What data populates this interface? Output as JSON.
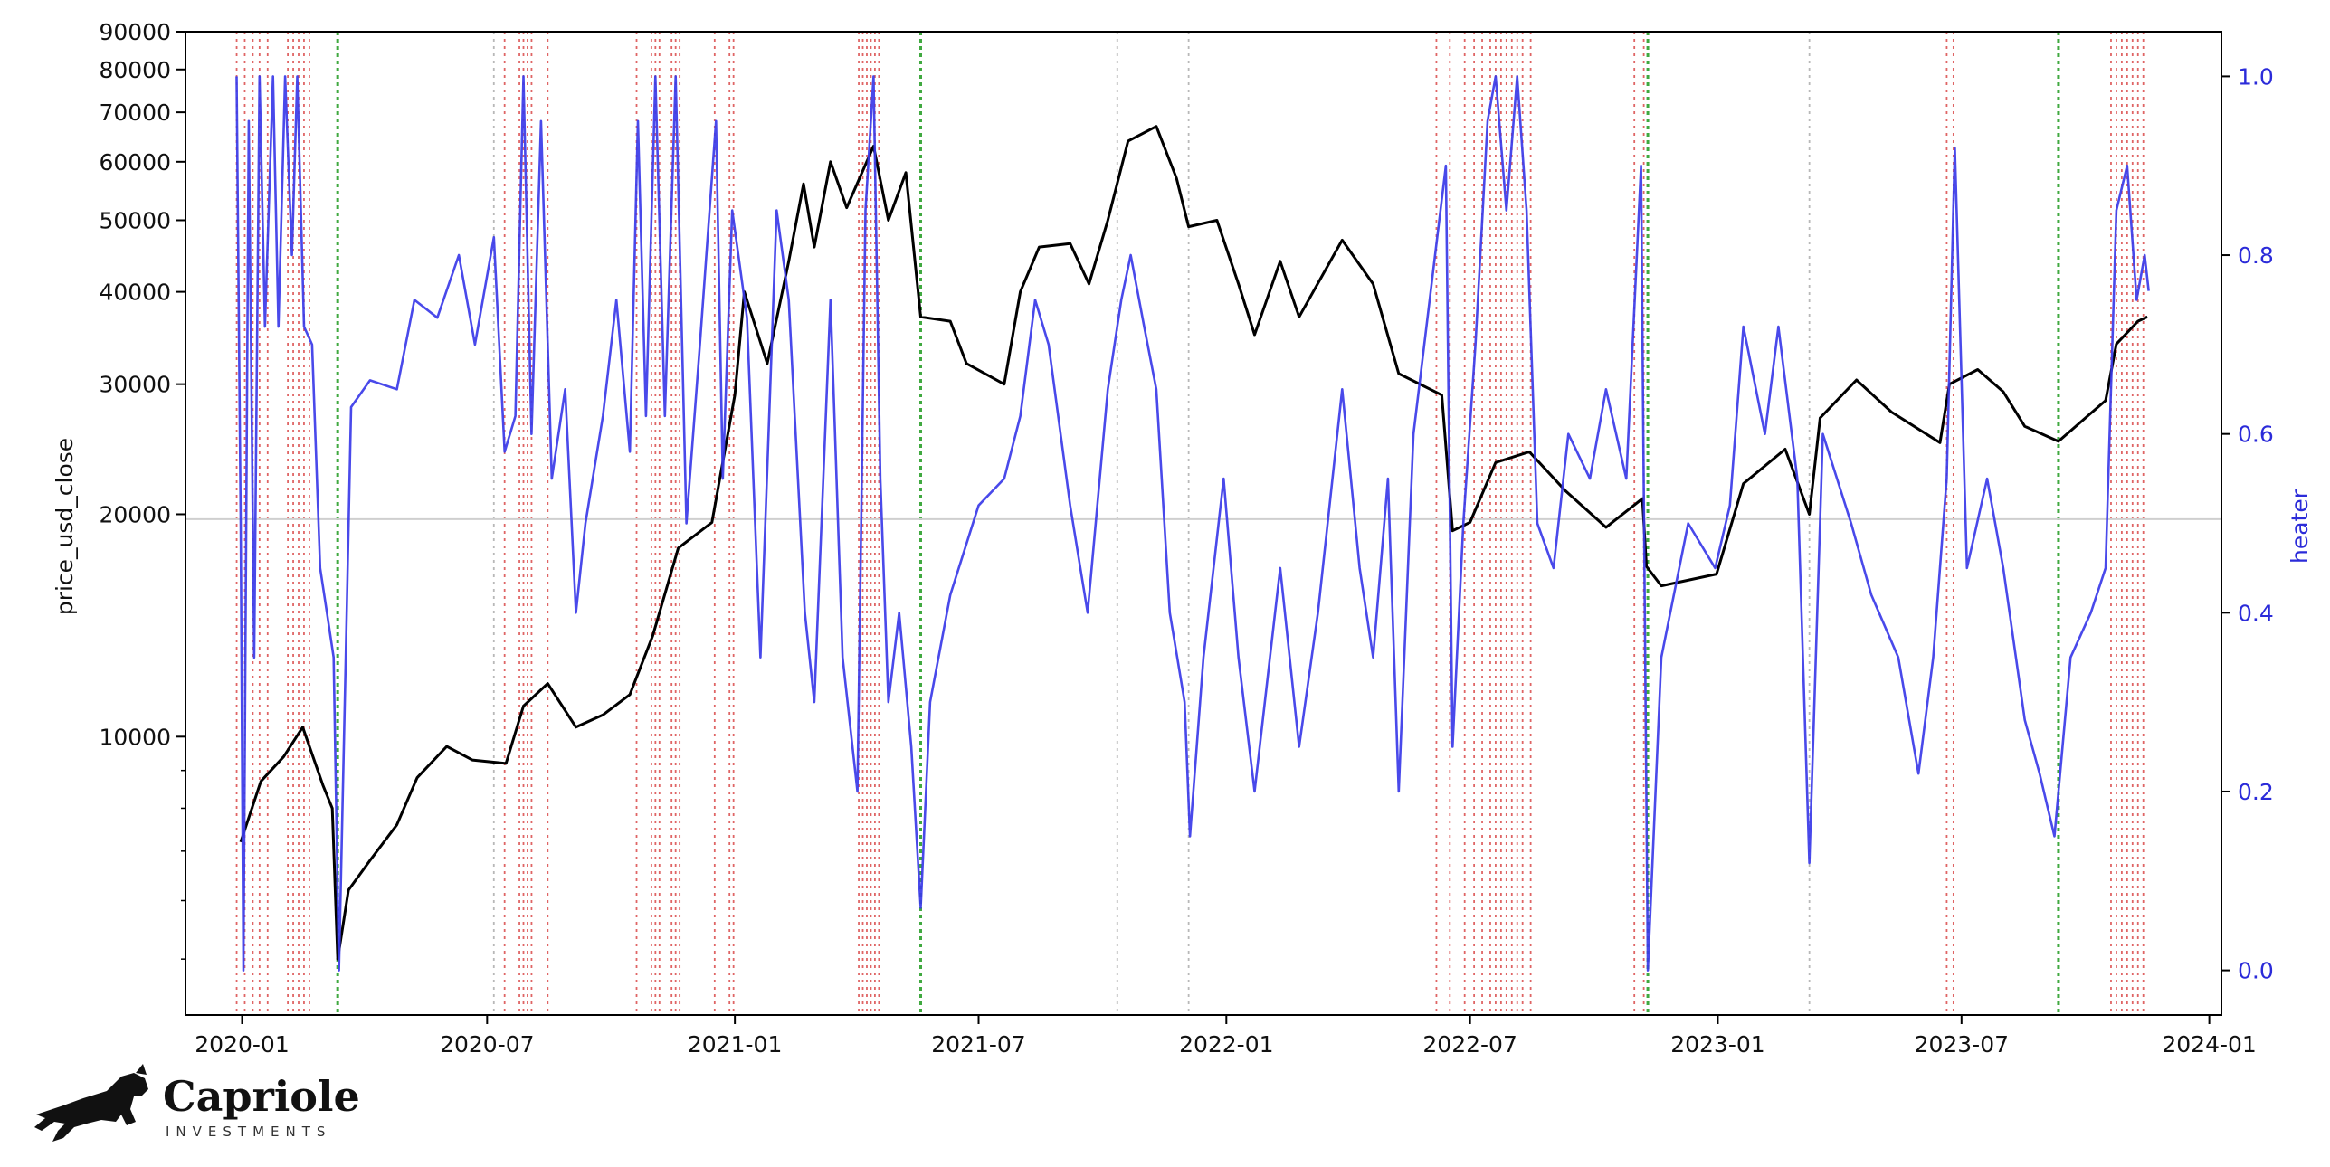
{
  "chart_data": {
    "type": "line",
    "xlabel": "",
    "ylabel": "price_usd_close",
    "y2label": "heater",
    "yscale": "log",
    "ylim": [
      4200,
      90000
    ],
    "y2lim": [
      -0.05,
      1.05
    ],
    "xlim": [
      "2019-11-20",
      "2024-01-10"
    ],
    "x_ticks": [
      "2020-01",
      "2020-07",
      "2021-01",
      "2021-07",
      "2022-01",
      "2022-07",
      "2023-01",
      "2023-07",
      "2024-01"
    ],
    "y_ticks": [
      10000,
      20000,
      30000,
      40000,
      50000,
      60000,
      70000,
      80000,
      90000
    ],
    "y_tick_labels": [
      "10000",
      "20000",
      "30000",
      "40000",
      "50000",
      "60000",
      "70000",
      "80000",
      "90000"
    ],
    "y2_ticks": [
      0.0,
      0.2,
      0.4,
      0.6,
      0.8,
      1.0
    ],
    "y2_tick_labels": [
      "0.0",
      "0.2",
      "0.4",
      "0.6",
      "0.8",
      "1.0"
    ],
    "reference_line": {
      "axis": "y",
      "value": 19700
    },
    "series": [
      {
        "axis": "left",
        "color": "#000000",
        "points": [
          [
            "2019-12-31",
            7200
          ],
          [
            "2020-01-15",
            8700
          ],
          [
            "2020-02-01",
            9400
          ],
          [
            "2020-02-15",
            10300
          ],
          [
            "2020-03-01",
            8600
          ],
          [
            "2020-03-08",
            8000
          ],
          [
            "2020-03-12",
            5000
          ],
          [
            "2020-03-20",
            6200
          ],
          [
            "2020-04-05",
            6800
          ],
          [
            "2020-04-25",
            7600
          ],
          [
            "2020-05-10",
            8800
          ],
          [
            "2020-06-01",
            9700
          ],
          [
            "2020-06-20",
            9300
          ],
          [
            "2020-07-15",
            9200
          ],
          [
            "2020-07-28",
            11000
          ],
          [
            "2020-08-15",
            11800
          ],
          [
            "2020-09-05",
            10300
          ],
          [
            "2020-09-25",
            10700
          ],
          [
            "2020-10-15",
            11400
          ],
          [
            "2020-11-01",
            13700
          ],
          [
            "2020-11-20",
            18000
          ],
          [
            "2020-12-15",
            19500
          ],
          [
            "2021-01-01",
            29000
          ],
          [
            "2021-01-08",
            40000
          ],
          [
            "2021-01-25",
            32000
          ],
          [
            "2021-02-10",
            44000
          ],
          [
            "2021-02-21",
            56000
          ],
          [
            "2021-03-01",
            46000
          ],
          [
            "2021-03-13",
            60000
          ],
          [
            "2021-03-25",
            52000
          ],
          [
            "2021-04-14",
            63000
          ],
          [
            "2021-04-25",
            50000
          ],
          [
            "2021-05-08",
            58000
          ],
          [
            "2021-05-19",
            37000
          ],
          [
            "2021-06-10",
            36500
          ],
          [
            "2021-06-22",
            32000
          ],
          [
            "2021-07-20",
            30000
          ],
          [
            "2021-08-01",
            40000
          ],
          [
            "2021-08-15",
            46000
          ],
          [
            "2021-09-07",
            46500
          ],
          [
            "2021-09-21",
            41000
          ],
          [
            "2021-10-05",
            50000
          ],
          [
            "2021-10-20",
            64000
          ],
          [
            "2021-11-10",
            67000
          ],
          [
            "2021-11-25",
            57000
          ],
          [
            "2021-12-04",
            49000
          ],
          [
            "2021-12-25",
            50000
          ],
          [
            "2022-01-10",
            41000
          ],
          [
            "2022-01-22",
            35000
          ],
          [
            "2022-02-10",
            44000
          ],
          [
            "2022-02-24",
            37000
          ],
          [
            "2022-03-28",
            47000
          ],
          [
            "2022-04-20",
            41000
          ],
          [
            "2022-05-09",
            31000
          ],
          [
            "2022-06-10",
            29000
          ],
          [
            "2022-06-18",
            19000
          ],
          [
            "2022-07-01",
            19500
          ],
          [
            "2022-07-20",
            23500
          ],
          [
            "2022-08-14",
            24300
          ],
          [
            "2022-09-10",
            21500
          ],
          [
            "2022-10-10",
            19200
          ],
          [
            "2022-11-06",
            21000
          ],
          [
            "2022-11-09",
            17000
          ],
          [
            "2022-11-20",
            16000
          ],
          [
            "2022-12-31",
            16600
          ],
          [
            "2023-01-20",
            22000
          ],
          [
            "2023-02-20",
            24500
          ],
          [
            "2023-03-10",
            20000
          ],
          [
            "2023-03-18",
            27000
          ],
          [
            "2023-04-14",
            30400
          ],
          [
            "2023-05-10",
            27500
          ],
          [
            "2023-06-15",
            25000
          ],
          [
            "2023-06-22",
            30000
          ],
          [
            "2023-07-13",
            31400
          ],
          [
            "2023-08-01",
            29300
          ],
          [
            "2023-08-17",
            26300
          ],
          [
            "2023-09-11",
            25100
          ],
          [
            "2023-10-01",
            27000
          ],
          [
            "2023-10-16",
            28500
          ],
          [
            "2023-10-24",
            34000
          ],
          [
            "2023-11-09",
            36500
          ],
          [
            "2023-11-16",
            37000
          ]
        ]
      },
      {
        "axis": "right",
        "color": "#3a3ae8",
        "points": [
          [
            "2019-12-28",
            1.0
          ],
          [
            "2019-12-31",
            0.5
          ],
          [
            "2020-01-02",
            0.0
          ],
          [
            "2020-01-06",
            0.95
          ],
          [
            "2020-01-10",
            0.35
          ],
          [
            "2020-01-14",
            1.0
          ],
          [
            "2020-01-18",
            0.72
          ],
          [
            "2020-01-24",
            1.0
          ],
          [
            "2020-01-28",
            0.72
          ],
          [
            "2020-02-02",
            1.0
          ],
          [
            "2020-02-07",
            0.8
          ],
          [
            "2020-02-11",
            1.0
          ],
          [
            "2020-02-16",
            0.72
          ],
          [
            "2020-02-22",
            0.7
          ],
          [
            "2020-02-28",
            0.45
          ],
          [
            "2020-03-04",
            0.4
          ],
          [
            "2020-03-09",
            0.35
          ],
          [
            "2020-03-13",
            0.0
          ],
          [
            "2020-03-18",
            0.35
          ],
          [
            "2020-03-22",
            0.63
          ],
          [
            "2020-04-05",
            0.66
          ],
          [
            "2020-04-25",
            0.65
          ],
          [
            "2020-05-08",
            0.75
          ],
          [
            "2020-05-25",
            0.73
          ],
          [
            "2020-06-10",
            0.8
          ],
          [
            "2020-06-22",
            0.7
          ],
          [
            "2020-07-06",
            0.82
          ],
          [
            "2020-07-14",
            0.58
          ],
          [
            "2020-07-22",
            0.62
          ],
          [
            "2020-07-28",
            1.0
          ],
          [
            "2020-08-03",
            0.6
          ],
          [
            "2020-08-10",
            0.95
          ],
          [
            "2020-08-18",
            0.55
          ],
          [
            "2020-08-28",
            0.65
          ],
          [
            "2020-09-05",
            0.4
          ],
          [
            "2020-09-12",
            0.5
          ],
          [
            "2020-09-25",
            0.62
          ],
          [
            "2020-10-05",
            0.75
          ],
          [
            "2020-10-15",
            0.58
          ],
          [
            "2020-10-21",
            0.95
          ],
          [
            "2020-10-27",
            0.62
          ],
          [
            "2020-11-03",
            1.0
          ],
          [
            "2020-11-10",
            0.62
          ],
          [
            "2020-11-18",
            1.0
          ],
          [
            "2020-11-26",
            0.5
          ],
          [
            "2020-12-06",
            0.7
          ],
          [
            "2020-12-18",
            0.95
          ],
          [
            "2020-12-23",
            0.55
          ],
          [
            "2020-12-30",
            0.85
          ],
          [
            "2021-01-10",
            0.73
          ],
          [
            "2021-01-20",
            0.35
          ],
          [
            "2021-02-01",
            0.85
          ],
          [
            "2021-02-10",
            0.75
          ],
          [
            "2021-02-22",
            0.4
          ],
          [
            "2021-03-01",
            0.3
          ],
          [
            "2021-03-13",
            0.75
          ],
          [
            "2021-03-22",
            0.35
          ],
          [
            "2021-04-02",
            0.2
          ],
          [
            "2021-04-08",
            0.85
          ],
          [
            "2021-04-14",
            1.0
          ],
          [
            "2021-04-19",
            0.55
          ],
          [
            "2021-04-25",
            0.3
          ],
          [
            "2021-05-03",
            0.4
          ],
          [
            "2021-05-12",
            0.25
          ],
          [
            "2021-05-19",
            0.07
          ],
          [
            "2021-05-26",
            0.3
          ],
          [
            "2021-06-10",
            0.42
          ],
          [
            "2021-07-01",
            0.52
          ],
          [
            "2021-07-20",
            0.55
          ],
          [
            "2021-08-01",
            0.62
          ],
          [
            "2021-08-12",
            0.75
          ],
          [
            "2021-08-22",
            0.7
          ],
          [
            "2021-09-07",
            0.52
          ],
          [
            "2021-09-20",
            0.4
          ],
          [
            "2021-10-05",
            0.65
          ],
          [
            "2021-10-15",
            0.75
          ],
          [
            "2021-10-22",
            0.8
          ],
          [
            "2021-11-01",
            0.72
          ],
          [
            "2021-11-10",
            0.65
          ],
          [
            "2021-11-20",
            0.4
          ],
          [
            "2021-12-01",
            0.3
          ],
          [
            "2021-12-05",
            0.15
          ],
          [
            "2021-12-15",
            0.35
          ],
          [
            "2021-12-30",
            0.55
          ],
          [
            "2022-01-10",
            0.35
          ],
          [
            "2022-01-22",
            0.2
          ],
          [
            "2022-02-10",
            0.45
          ],
          [
            "2022-02-24",
            0.25
          ],
          [
            "2022-03-10",
            0.4
          ],
          [
            "2022-03-28",
            0.65
          ],
          [
            "2022-04-10",
            0.45
          ],
          [
            "2022-04-20",
            0.35
          ],
          [
            "2022-05-01",
            0.55
          ],
          [
            "2022-05-09",
            0.2
          ],
          [
            "2022-05-20",
            0.6
          ],
          [
            "2022-06-01",
            0.75
          ],
          [
            "2022-06-13",
            0.9
          ],
          [
            "2022-06-18",
            0.25
          ],
          [
            "2022-06-26",
            0.5
          ],
          [
            "2022-07-05",
            0.7
          ],
          [
            "2022-07-14",
            0.95
          ],
          [
            "2022-07-20",
            1.0
          ],
          [
            "2022-07-28",
            0.85
          ],
          [
            "2022-08-05",
            1.0
          ],
          [
            "2022-08-12",
            0.85
          ],
          [
            "2022-08-20",
            0.5
          ],
          [
            "2022-09-01",
            0.45
          ],
          [
            "2022-09-12",
            0.6
          ],
          [
            "2022-09-28",
            0.55
          ],
          [
            "2022-10-10",
            0.65
          ],
          [
            "2022-10-25",
            0.55
          ],
          [
            "2022-11-05",
            0.9
          ],
          [
            "2022-11-10",
            0.0
          ],
          [
            "2022-11-20",
            0.35
          ],
          [
            "2022-12-10",
            0.5
          ],
          [
            "2022-12-30",
            0.45
          ],
          [
            "2023-01-10",
            0.52
          ],
          [
            "2023-01-20",
            0.72
          ],
          [
            "2023-02-05",
            0.6
          ],
          [
            "2023-02-15",
            0.72
          ],
          [
            "2023-03-01",
            0.55
          ],
          [
            "2023-03-10",
            0.12
          ],
          [
            "2023-03-20",
            0.6
          ],
          [
            "2023-04-10",
            0.5
          ],
          [
            "2023-04-25",
            0.42
          ],
          [
            "2023-05-15",
            0.35
          ],
          [
            "2023-05-30",
            0.22
          ],
          [
            "2023-06-10",
            0.35
          ],
          [
            "2023-06-20",
            0.55
          ],
          [
            "2023-06-26",
            0.92
          ],
          [
            "2023-07-05",
            0.45
          ],
          [
            "2023-07-20",
            0.55
          ],
          [
            "2023-08-01",
            0.45
          ],
          [
            "2023-08-17",
            0.28
          ],
          [
            "2023-08-28",
            0.22
          ],
          [
            "2023-09-08",
            0.15
          ],
          [
            "2023-09-20",
            0.35
          ],
          [
            "2023-10-05",
            0.4
          ],
          [
            "2023-10-16",
            0.45
          ],
          [
            "2023-10-24",
            0.85
          ],
          [
            "2023-11-01",
            0.9
          ],
          [
            "2023-11-08",
            0.75
          ],
          [
            "2023-11-14",
            0.8
          ],
          [
            "2023-11-17",
            0.76
          ]
        ]
      }
    ],
    "markers": {
      "red": [
        "2019-12-28",
        "2020-01-03",
        "2020-01-09",
        "2020-01-14",
        "2020-01-20",
        "2020-02-04",
        "2020-02-08",
        "2020-02-12",
        "2020-02-16",
        "2020-02-20",
        "2020-07-14",
        "2020-07-25",
        "2020-07-28",
        "2020-07-31",
        "2020-08-03",
        "2020-08-15",
        "2020-10-20",
        "2020-10-31",
        "2020-11-03",
        "2020-11-06",
        "2020-11-15",
        "2020-11-18",
        "2020-11-21",
        "2020-12-17",
        "2020-12-28",
        "2020-12-31",
        "2021-04-03",
        "2021-04-06",
        "2021-04-09",
        "2021-04-12",
        "2021-04-15",
        "2021-04-18",
        "2022-06-06",
        "2022-06-16",
        "2022-06-27",
        "2022-07-04",
        "2022-07-10",
        "2022-07-16",
        "2022-07-20",
        "2022-07-24",
        "2022-07-28",
        "2022-08-01",
        "2022-08-05",
        "2022-08-09",
        "2022-08-15",
        "2022-10-31",
        "2022-11-07",
        "2023-06-20",
        "2023-06-25",
        "2023-10-20",
        "2023-10-24",
        "2023-10-28",
        "2023-11-01",
        "2023-11-05",
        "2023-11-09",
        "2023-11-13"
      ],
      "green": [
        "2020-03-12",
        "2021-05-19",
        "2022-11-10",
        "2023-09-11"
      ],
      "grey": [
        "2020-07-06",
        "2021-10-12",
        "2021-12-04",
        "2023-03-10"
      ]
    }
  },
  "brand": {
    "name": "Capriole",
    "tagline": "INVESTMENTS"
  }
}
